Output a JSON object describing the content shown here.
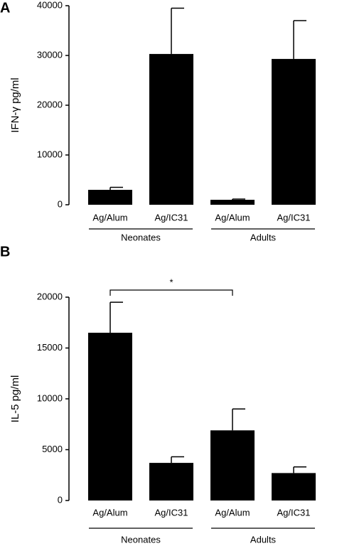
{
  "chart_data": [
    {
      "type": "bar",
      "panel": "A",
      "ylabel": "IFN-γ pg/ml",
      "categories": [
        "Ag/Alum",
        "Ag/IC31",
        "Ag/Alum",
        "Ag/IC31"
      ],
      "values": [
        3000,
        30300,
        1000,
        29300
      ],
      "errors": [
        500,
        9200,
        150,
        7700
      ],
      "color": "#000000",
      "ylim": [
        0,
        40000
      ],
      "yticks": [
        0,
        10000,
        20000,
        30000,
        40000
      ],
      "groups": [
        {
          "label": "Neonates",
          "n": 2
        },
        {
          "label": "Adults",
          "n": 2
        }
      ]
    },
    {
      "type": "bar",
      "panel": "B",
      "ylabel": "IL-5 pg/ml",
      "categories": [
        "Ag/Alum",
        "Ag/IC31",
        "Ag/Alum",
        "Ag/IC31"
      ],
      "values": [
        16500,
        3700,
        6900,
        2700
      ],
      "errors": [
        3000,
        600,
        2100,
        600
      ],
      "color": "#000000",
      "ylim": [
        0,
        20000
      ],
      "yticks": [
        0,
        5000,
        10000,
        15000,
        20000
      ],
      "groups": [
        {
          "label": "Neonates",
          "n": 2
        },
        {
          "label": "Adults",
          "n": 2
        }
      ],
      "annotations": [
        {
          "text": "*",
          "from": 0,
          "to": 2
        }
      ]
    }
  ]
}
